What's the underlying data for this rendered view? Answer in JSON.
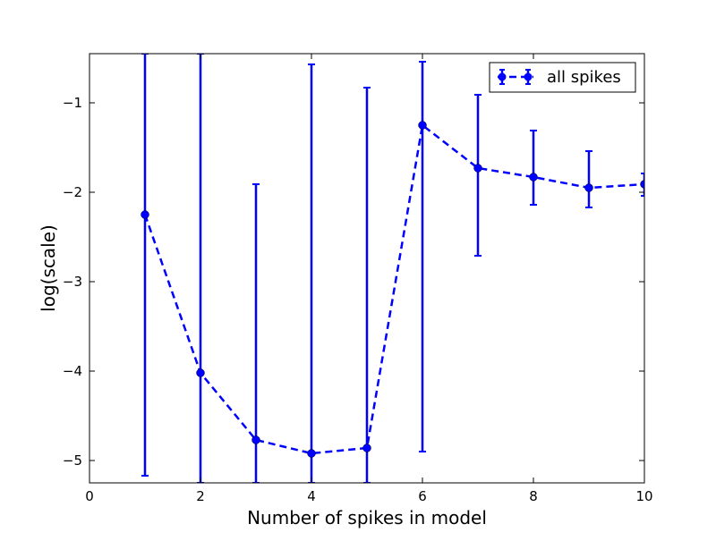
{
  "chart_data": {
    "type": "line",
    "xlabel": "Number of spikes in model",
    "ylabel": "log(scale)",
    "xlim": [
      0,
      10
    ],
    "ylim": [
      -5.25,
      -0.45
    ],
    "xticks": [
      0,
      2,
      4,
      6,
      8,
      10
    ],
    "xtick_labels": [
      "0",
      "2",
      "4",
      "6",
      "8",
      "10"
    ],
    "yticks": [
      -5,
      -4,
      -3,
      -2,
      -1
    ],
    "ytick_labels": [
      "−5",
      "−4",
      "−3",
      "−2",
      "−1"
    ],
    "grid": false,
    "legend_position": "top-right",
    "series": [
      {
        "name": "all spikes",
        "color": "#0000ff",
        "line_style": "dashed",
        "marker": "circle",
        "x": [
          1,
          2,
          3,
          4,
          5,
          6,
          7,
          8,
          9,
          10
        ],
        "y": [
          -2.25,
          -4.02,
          -4.77,
          -4.92,
          -4.86,
          -1.25,
          -1.73,
          -1.83,
          -1.95,
          -1.91
        ],
        "error_lower": [
          -5.17,
          -5.25,
          -5.25,
          -5.25,
          -5.25,
          -4.9,
          -2.71,
          -2.14,
          -2.17,
          -2.04
        ],
        "error_upper": [
          -0.45,
          -0.45,
          -1.91,
          -0.57,
          -0.83,
          -0.54,
          -0.91,
          -1.31,
          -1.54,
          -1.79
        ]
      }
    ]
  }
}
